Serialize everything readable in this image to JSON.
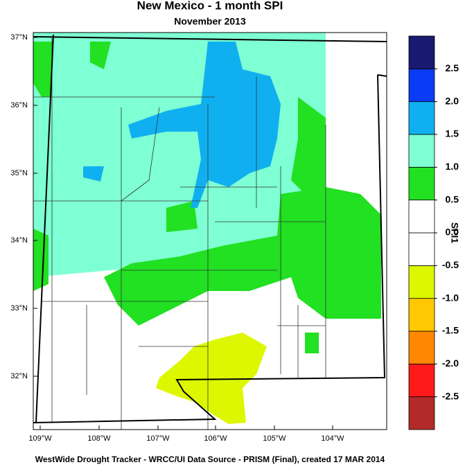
{
  "title": "New Mexico - 1 month SPI",
  "subtitle": "November 2013",
  "footer": "WestWide Drought Tracker - WRCC/UI  Data Source - PRISM (Final), created 17 MAR 2014",
  "lat_labels": [
    "37°N",
    "36°N",
    "35°N",
    "34°N",
    "33°N",
    "32°N"
  ],
  "lon_labels": [
    "109°W",
    "108°W",
    "107°W",
    "106°W",
    "105°W",
    "104°W"
  ],
  "colorbar": {
    "title": "SPI1",
    "range": [
      -3,
      3
    ],
    "colors": [
      "#b22a2a",
      "#ff1a1a",
      "#ff8800",
      "#ffc800",
      "#ddf700",
      "#ffffff",
      "#ffffff",
      "#22e022",
      "#7fffd4",
      "#10b0f0",
      "#0a3cf5",
      "#1a1a70"
    ],
    "ticks": [
      -2.5,
      {
        "value": -2,
        "label": "-2.0"
      },
      -1.5,
      {
        "value": -1,
        "label": "-1.0"
      },
      -0.5,
      {
        "value": 0,
        "label": "0.0"
      },
      0.5,
      {
        "value": 1,
        "label": "1.0"
      },
      1.5,
      {
        "value": 2,
        "label": "2.0"
      },
      2.5
    ]
  }
}
